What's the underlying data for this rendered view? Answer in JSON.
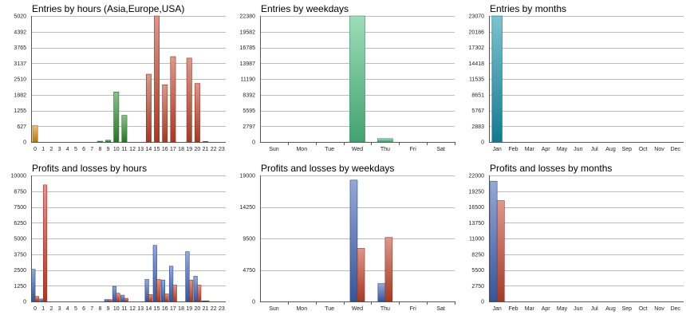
{
  "colors": {
    "orange": "#d98a10",
    "green": "#2e8b2e",
    "red": "#c0442e",
    "lightgreen": "#4fbf82",
    "teal": "#1890a8",
    "blue": "#3f63b4"
  },
  "chart_data": [
    {
      "type": "bar",
      "title": "Entries by hours (Asia,Europe,USA)",
      "categories": [
        "0",
        "1",
        "2",
        "3",
        "4",
        "5",
        "6",
        "7",
        "8",
        "9",
        "10",
        "11",
        "12",
        "13",
        "14",
        "15",
        "16",
        "17",
        "18",
        "19",
        "20",
        "21",
        "22",
        "23"
      ],
      "yticks": [
        "0",
        "627",
        "1255",
        "1882",
        "2510",
        "3137",
        "3765",
        "4392",
        "5020"
      ],
      "ylim": [
        0,
        5020
      ],
      "bar_colors": [
        "orange",
        "orange",
        "orange",
        "orange",
        "orange",
        "orange",
        "orange",
        "green",
        "green",
        "green",
        "green",
        "green",
        "green",
        "green",
        "red",
        "red",
        "red",
        "red",
        "red",
        "red",
        "red",
        "red",
        "red",
        "red"
      ],
      "values": [
        650,
        0,
        0,
        0,
        0,
        0,
        0,
        0,
        30,
        70,
        1990,
        1060,
        0,
        0,
        2700,
        5020,
        2280,
        3400,
        0,
        3340,
        2330,
        20,
        0,
        0
      ]
    },
    {
      "type": "bar",
      "title": "Entries by weekdays",
      "categories": [
        "Sun",
        "Mon",
        "Tue",
        "Wed",
        "Thu",
        "Fri",
        "Sat"
      ],
      "yticks": [
        "0",
        "2797",
        "5595",
        "8392",
        "11190",
        "13987",
        "16785",
        "19582",
        "22380"
      ],
      "ylim": [
        0,
        22380
      ],
      "bar_colors": [
        "lightgreen",
        "lightgreen",
        "lightgreen",
        "lightgreen",
        "lightgreen",
        "lightgreen",
        "lightgreen"
      ],
      "values": [
        0,
        0,
        0,
        22380,
        600,
        0,
        0
      ]
    },
    {
      "type": "bar",
      "title": "Entries by months",
      "categories": [
        "Jan",
        "Feb",
        "Mar",
        "Apr",
        "May",
        "Jun",
        "Jul",
        "Aug",
        "Sep",
        "Oct",
        "Nov",
        "Dec"
      ],
      "yticks": [
        "0",
        "2883",
        "5767",
        "8651",
        "11535",
        "14418",
        "17302",
        "20186",
        "23070"
      ],
      "ylim": [
        0,
        23070
      ],
      "bar_colors": [
        "teal",
        "teal",
        "teal",
        "teal",
        "teal",
        "teal",
        "teal",
        "teal",
        "teal",
        "teal",
        "teal",
        "teal"
      ],
      "values": [
        23070,
        0,
        0,
        0,
        0,
        0,
        0,
        0,
        0,
        0,
        0,
        0
      ]
    },
    {
      "type": "bar",
      "title": "Profits and losses by hours",
      "categories": [
        "0",
        "1",
        "2",
        "3",
        "4",
        "5",
        "6",
        "7",
        "8",
        "9",
        "10",
        "11",
        "12",
        "13",
        "14",
        "15",
        "16",
        "17",
        "18",
        "19",
        "20",
        "21",
        "22",
        "23"
      ],
      "yticks": [
        "0",
        "1250",
        "2500",
        "3750",
        "5000",
        "6250",
        "7500",
        "8750",
        "10000"
      ],
      "ylim": [
        0,
        10000
      ],
      "series": [
        {
          "color": "blue",
          "values": [
            2550,
            200,
            0,
            0,
            0,
            0,
            0,
            0,
            0,
            150,
            1200,
            500,
            0,
            0,
            1750,
            4450,
            1700,
            2800,
            0,
            3950,
            2000,
            50,
            0,
            0
          ]
        },
        {
          "color": "red",
          "values": [
            400,
            9250,
            0,
            0,
            0,
            0,
            0,
            0,
            0,
            150,
            650,
            250,
            0,
            0,
            550,
            1750,
            600,
            1300,
            0,
            1700,
            1300,
            50,
            0,
            0
          ]
        }
      ]
    },
    {
      "type": "bar",
      "title": "Profits and losses by weekdays",
      "categories": [
        "Sun",
        "Mon",
        "Tue",
        "Wed",
        "Thu",
        "Fri",
        "Sat"
      ],
      "yticks": [
        "0",
        "4750",
        "9500",
        "14250",
        "19000"
      ],
      "ylim": [
        0,
        19000
      ],
      "series": [
        {
          "color": "blue",
          "values": [
            0,
            0,
            0,
            18300,
            2700,
            0,
            0
          ]
        },
        {
          "color": "red",
          "values": [
            0,
            0,
            0,
            8000,
            9650,
            0,
            0
          ]
        }
      ]
    },
    {
      "type": "bar",
      "title": "Profits and losses by months",
      "categories": [
        "Jan",
        "Feb",
        "Mar",
        "Apr",
        "May",
        "Jun",
        "Jul",
        "Aug",
        "Sep",
        "Oct",
        "Nov",
        "Dec"
      ],
      "yticks": [
        "0",
        "2750",
        "5500",
        "8250",
        "11000",
        "13750",
        "16500",
        "19250",
        "22000"
      ],
      "ylim": [
        0,
        22000
      ],
      "series": [
        {
          "color": "blue",
          "values": [
            21000,
            0,
            0,
            0,
            0,
            0,
            0,
            0,
            0,
            0,
            0,
            0
          ]
        },
        {
          "color": "red",
          "values": [
            17600,
            0,
            0,
            0,
            0,
            0,
            0,
            0,
            0,
            0,
            0,
            0
          ]
        }
      ]
    }
  ]
}
